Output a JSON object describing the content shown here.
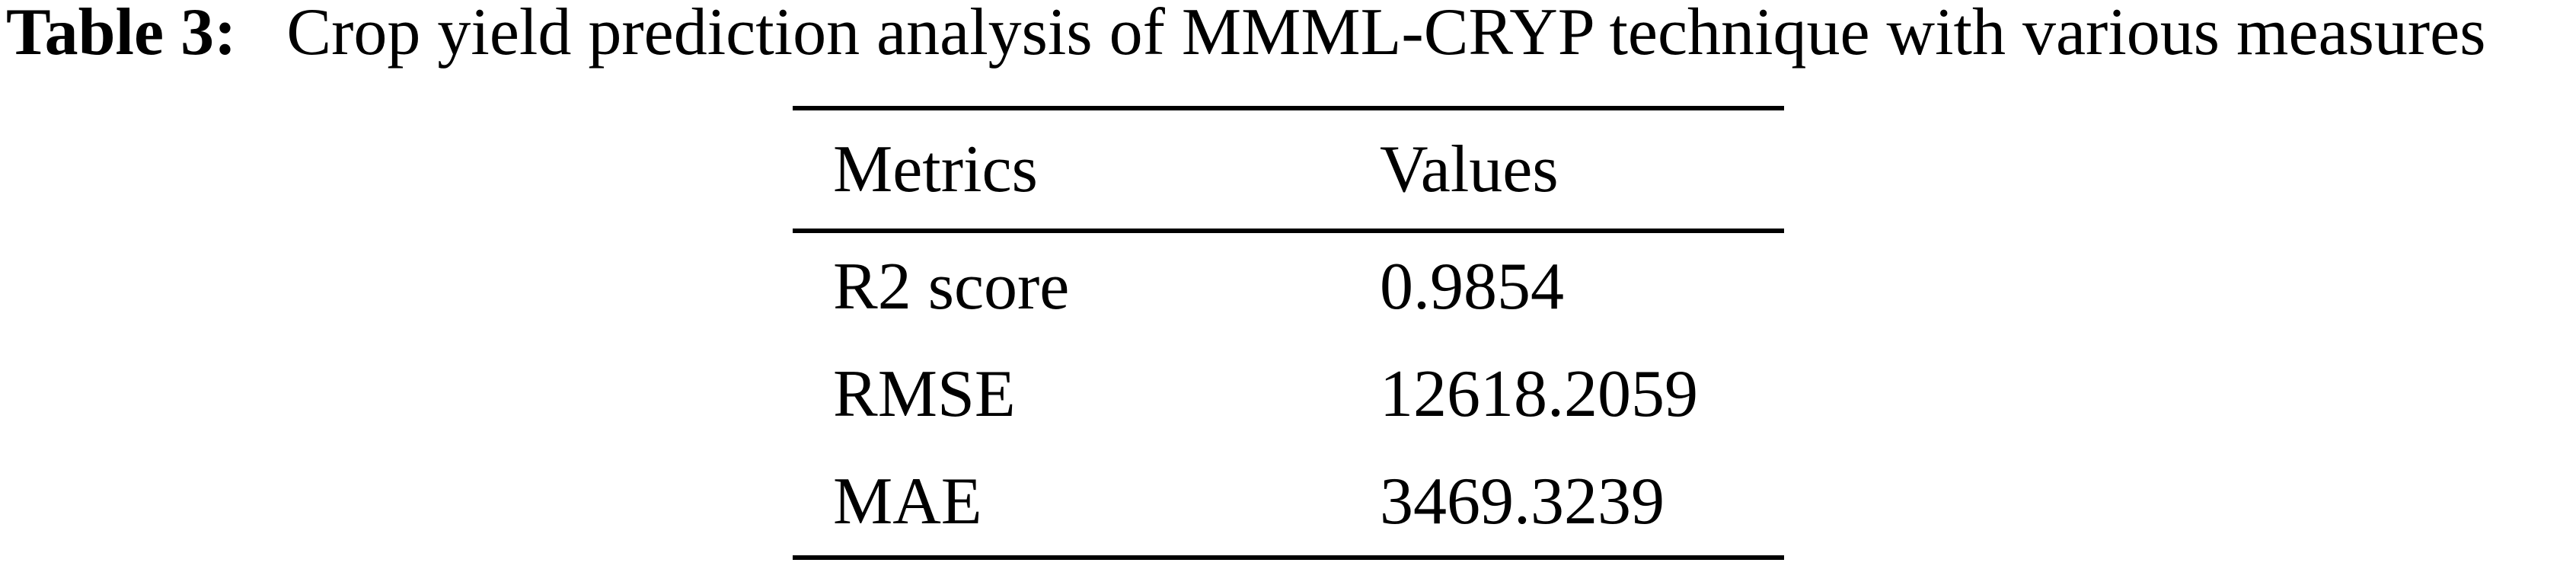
{
  "title": {
    "label": "Table 3:",
    "text": "Crop yield prediction analysis of MMML-CRYP technique with various measures"
  },
  "table": {
    "headers": {
      "metrics": "Metrics",
      "values": "Values"
    },
    "rows": [
      {
        "metric": "R2 score",
        "value": "0.9854"
      },
      {
        "metric": "RMSE",
        "value": "12618.2059"
      },
      {
        "metric": "MAE",
        "value": "3469.3239"
      }
    ]
  },
  "colors": {
    "text": "#000000",
    "rule": "#000000",
    "background": "#ffffff"
  }
}
